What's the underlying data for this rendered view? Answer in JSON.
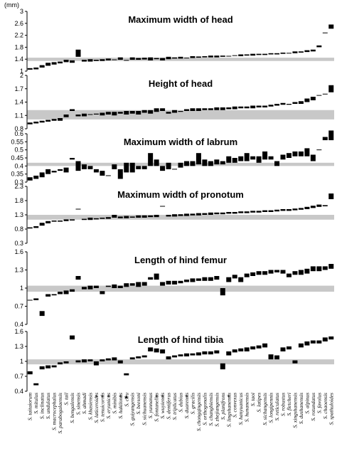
{
  "unit_label": "(mm)",
  "species": [
    "S. taitaiorum",
    "S. mitulus",
    "S. inclinatus",
    "S. undulatus",
    "S. macrocephalus",
    "S. parabogalaensis",
    "S. tail",
    "S. bengalensis",
    "S. sinensis",
    "S. ahmadi",
    "S. khasiensis",
    "S. laticeroides",
    "S. tenuicornis",
    "S. eryunicus",
    "S. minibis",
    "S. hakilonus",
    "S. ciru",
    "S. guiyangensis",
    "S. beesoni",
    "S. sichuanensis",
    "S. yunnanus",
    "S. fontanellus",
    "S. wuyiensis",
    "S. dentiferus",
    "S. triplicatus",
    "S. dubius",
    "S. duarensis",
    "S. gracilis",
    "S. chongqingensis",
    "S. orthogonalis",
    "S. changbiensis",
    "S. zhejiangensis",
    "S. planifrons",
    "S. lingshanensis",
    "S. convexus",
    "S. hanyuanicus",
    "S. hunanensis",
    "S. taoi",
    "S. latipes",
    "S. sichangensis",
    "S. longipennis",
    "S. reticulatus",
    "S. robustus",
    "S. fletcheri",
    "S. xingshanensis",
    "S. dushanensis",
    "S. alpinus",
    "S. rotundatus",
    "S. favolus",
    "S. chaoensis",
    "S. spathuloides"
  ],
  "star_species": [
    16
  ],
  "asterisk_species": [
    11,
    12,
    13,
    15,
    21,
    22,
    26,
    33
  ],
  "colors": {
    "band": "#c8c8c8",
    "bar": "#000000",
    "text": "#000000"
  },
  "chart_data": [
    {
      "type": "range-bar",
      "title": "Maximum width of head",
      "ylim": [
        1,
        3
      ],
      "yticks": [
        "1",
        "1.4",
        "1.8",
        "2.2",
        "2.6",
        "3"
      ],
      "ytick_values": [
        1,
        1.4,
        1.8,
        2.2,
        2.6,
        3
      ],
      "band": [
        1.34,
        1.45
      ],
      "ranges": [
        [
          1.05,
          1.1
        ],
        [
          1.06,
          1.12
        ],
        [
          1.12,
          1.2
        ],
        [
          1.18,
          1.28
        ],
        [
          1.22,
          1.3
        ],
        [
          1.26,
          1.32
        ],
        [
          1.3,
          1.38
        ],
        [
          1.28,
          1.36
        ],
        [
          1.48,
          1.72
        ],
        [
          1.32,
          1.38
        ],
        [
          1.32,
          1.4
        ],
        [
          1.34,
          1.38
        ],
        [
          1.34,
          1.4
        ],
        [
          1.36,
          1.42
        ],
        [
          1.38,
          1.38
        ],
        [
          1.38,
          1.46
        ],
        [
          1.36,
          1.36
        ],
        [
          1.38,
          1.46
        ],
        [
          1.38,
          1.44
        ],
        [
          1.39,
          1.45
        ],
        [
          1.36,
          1.46
        ],
        [
          1.4,
          1.44
        ],
        [
          1.36,
          1.44
        ],
        [
          1.4,
          1.48
        ],
        [
          1.42,
          1.46
        ],
        [
          1.42,
          1.48
        ],
        [
          1.44,
          1.44
        ],
        [
          1.44,
          1.5
        ],
        [
          1.45,
          1.49
        ],
        [
          1.46,
          1.5
        ],
        [
          1.46,
          1.52
        ],
        [
          1.46,
          1.52
        ],
        [
          1.48,
          1.52
        ],
        [
          1.48,
          1.5
        ],
        [
          1.5,
          1.52
        ],
        [
          1.5,
          1.56
        ],
        [
          1.52,
          1.56
        ],
        [
          1.52,
          1.58
        ],
        [
          1.54,
          1.58
        ],
        [
          1.54,
          1.58
        ],
        [
          1.56,
          1.6
        ],
        [
          1.56,
          1.6
        ],
        [
          1.58,
          1.62
        ],
        [
          1.6,
          1.6
        ],
        [
          1.6,
          1.66
        ],
        [
          1.62,
          1.66
        ],
        [
          1.64,
          1.7
        ],
        [
          1.66,
          1.72
        ],
        [
          1.8,
          1.86
        ],
        [
          2.28,
          2.28
        ],
        [
          2.42,
          2.56
        ]
      ]
    },
    {
      "type": "range-bar",
      "title": "Height of head",
      "ylim": [
        0.8,
        2
      ],
      "yticks": [
        "0.8",
        "1.1",
        "1.4",
        "1.7",
        "2"
      ],
      "ytick_values": [
        0.8,
        1.1,
        1.4,
        1.7,
        2
      ],
      "band": [
        1.01,
        1.22
      ],
      "ranges": [
        [
          0.9,
          0.94
        ],
        [
          0.92,
          0.96
        ],
        [
          0.94,
          0.98
        ],
        [
          0.96,
          1.0
        ],
        [
          0.98,
          1.02
        ],
        [
          0.98,
          1.04
        ],
        [
          1.06,
          1.12
        ],
        [
          1.2,
          1.24
        ],
        [
          1.08,
          1.12
        ],
        [
          1.08,
          1.14
        ],
        [
          1.12,
          1.12
        ],
        [
          1.12,
          1.14
        ],
        [
          1.1,
          1.16
        ],
        [
          1.12,
          1.18
        ],
        [
          1.1,
          1.18
        ],
        [
          1.14,
          1.18
        ],
        [
          1.12,
          1.2
        ],
        [
          1.14,
          1.2
        ],
        [
          1.12,
          1.2
        ],
        [
          1.16,
          1.22
        ],
        [
          1.14,
          1.22
        ],
        [
          1.18,
          1.26
        ],
        [
          1.2,
          1.26
        ],
        [
          1.14,
          1.18
        ],
        [
          1.16,
          1.22
        ],
        [
          1.18,
          1.2
        ],
        [
          1.2,
          1.24
        ],
        [
          1.2,
          1.26
        ],
        [
          1.2,
          1.26
        ],
        [
          1.22,
          1.26
        ],
        [
          1.22,
          1.26
        ],
        [
          1.22,
          1.28
        ],
        [
          1.22,
          1.28
        ],
        [
          1.24,
          1.28
        ],
        [
          1.24,
          1.3
        ],
        [
          1.26,
          1.3
        ],
        [
          1.26,
          1.3
        ],
        [
          1.26,
          1.32
        ],
        [
          1.28,
          1.32
        ],
        [
          1.28,
          1.32
        ],
        [
          1.3,
          1.34
        ],
        [
          1.32,
          1.36
        ],
        [
          1.34,
          1.38
        ],
        [
          1.34,
          1.36
        ],
        [
          1.36,
          1.4
        ],
        [
          1.36,
          1.42
        ],
        [
          1.4,
          1.48
        ],
        [
          1.44,
          1.52
        ],
        [
          1.55,
          1.55
        ],
        [
          1.58,
          1.58
        ],
        [
          1.62,
          1.78
        ]
      ]
    },
    {
      "type": "range-bar",
      "title": "Maximum width of labrum",
      "ylim": [
        0.3,
        0.6
      ],
      "yticks": [
        "0.3",
        "0.35",
        "0.4",
        "0.45",
        "0.5",
        "0.55",
        "0.6"
      ],
      "ytick_values": [
        0.3,
        0.35,
        0.4,
        0.45,
        0.5,
        0.55,
        0.6
      ],
      "band": [
        0.4,
        0.42
      ],
      "ranges": [
        [
          0.31,
          0.33
        ],
        [
          0.32,
          0.34
        ],
        [
          0.33,
          0.36
        ],
        [
          0.35,
          0.38
        ],
        [
          0.36,
          0.37
        ],
        [
          0.37,
          0.38
        ],
        [
          0.36,
          0.39
        ],
        [
          0.44,
          0.45
        ],
        [
          0.37,
          0.43
        ],
        [
          0.38,
          0.41
        ],
        [
          0.38,
          0.4
        ],
        [
          0.36,
          0.38
        ],
        [
          0.34,
          0.37
        ],
        [
          0.34,
          0.34
        ],
        [
          0.38,
          0.41
        ],
        [
          0.32,
          0.38
        ],
        [
          0.36,
          0.42
        ],
        [
          0.36,
          0.42
        ],
        [
          0.38,
          0.4
        ],
        [
          0.38,
          0.4
        ],
        [
          0.4,
          0.48
        ],
        [
          0.4,
          0.44
        ],
        [
          0.37,
          0.4
        ],
        [
          0.38,
          0.42
        ],
        [
          0.38,
          0.38
        ],
        [
          0.39,
          0.42
        ],
        [
          0.4,
          0.43
        ],
        [
          0.4,
          0.43
        ],
        [
          0.41,
          0.48
        ],
        [
          0.4,
          0.44
        ],
        [
          0.4,
          0.43
        ],
        [
          0.41,
          0.44
        ],
        [
          0.41,
          0.43
        ],
        [
          0.42,
          0.46
        ],
        [
          0.42,
          0.45
        ],
        [
          0.43,
          0.46
        ],
        [
          0.43,
          0.48
        ],
        [
          0.44,
          0.46
        ],
        [
          0.42,
          0.46
        ],
        [
          0.44,
          0.49
        ],
        [
          0.44,
          0.46
        ],
        [
          0.4,
          0.43
        ],
        [
          0.44,
          0.47
        ],
        [
          0.45,
          0.48
        ],
        [
          0.46,
          0.49
        ],
        [
          0.46,
          0.49
        ],
        [
          0.46,
          0.51
        ],
        [
          0.43,
          0.47
        ],
        [
          0.5,
          0.5
        ],
        [
          0.56,
          0.58
        ],
        [
          0.56,
          0.62
        ]
      ]
    },
    {
      "type": "range-bar",
      "title": "Maximum width of pronotum",
      "ylim": [
        0.3,
        2.3
      ],
      "yticks": [
        "0.3",
        "0.8",
        "1.3",
        "1.8",
        "2.3"
      ],
      "ytick_values": [
        0.3,
        0.8,
        1.3,
        1.8,
        2.3
      ],
      "band": [
        1.13,
        1.3
      ],
      "ranges": [
        [
          0.82,
          0.86
        ],
        [
          0.84,
          0.9
        ],
        [
          0.92,
          1.02
        ],
        [
          1.0,
          1.08
        ],
        [
          1.06,
          1.1
        ],
        [
          1.06,
          1.1
        ],
        [
          1.08,
          1.14
        ],
        [
          1.1,
          1.14
        ],
        [
          1.5,
          1.5
        ],
        [
          1.12,
          1.16
        ],
        [
          1.12,
          1.2
        ],
        [
          1.14,
          1.18
        ],
        [
          1.16,
          1.2
        ],
        [
          1.16,
          1.22
        ],
        [
          1.2,
          1.3
        ],
        [
          1.18,
          1.24
        ],
        [
          1.18,
          1.26
        ],
        [
          1.2,
          1.24
        ],
        [
          1.2,
          1.28
        ],
        [
          1.2,
          1.28
        ],
        [
          1.22,
          1.28
        ],
        [
          1.22,
          1.3
        ],
        [
          1.6,
          1.6
        ],
        [
          1.24,
          1.3
        ],
        [
          1.24,
          1.32
        ],
        [
          1.26,
          1.32
        ],
        [
          1.26,
          1.34
        ],
        [
          1.28,
          1.34
        ],
        [
          1.28,
          1.36
        ],
        [
          1.3,
          1.36
        ],
        [
          1.3,
          1.38
        ],
        [
          1.32,
          1.38
        ],
        [
          1.32,
          1.38
        ],
        [
          1.34,
          1.4
        ],
        [
          1.34,
          1.4
        ],
        [
          1.36,
          1.42
        ],
        [
          1.36,
          1.42
        ],
        [
          1.38,
          1.44
        ],
        [
          1.38,
          1.44
        ],
        [
          1.4,
          1.46
        ],
        [
          1.4,
          1.46
        ],
        [
          1.42,
          1.48
        ],
        [
          1.44,
          1.5
        ],
        [
          1.44,
          1.5
        ],
        [
          1.46,
          1.52
        ],
        [
          1.48,
          1.54
        ],
        [
          1.5,
          1.58
        ],
        [
          1.54,
          1.62
        ],
        [
          1.58,
          1.66
        ],
        [
          1.6,
          1.64
        ],
        [
          1.85,
          2.05
        ]
      ]
    },
    {
      "type": "range-bar",
      "title": "Length of hind femur",
      "ylim": [
        0.4,
        1.6
      ],
      "yticks": [
        "0.4",
        "0.7",
        "1",
        "1.3",
        "1.6"
      ],
      "ytick_values": [
        0.4,
        0.7,
        1,
        1.3,
        1.6
      ],
      "band": [
        0.94,
        1.04
      ],
      "ranges": [
        [
          0.8,
          0.8
        ],
        [
          0.8,
          0.83
        ],
        [
          0.54,
          0.62
        ],
        [
          0.86,
          0.9
        ],
        [
          0.88,
          0.9
        ],
        [
          0.9,
          0.94
        ],
        [
          0.9,
          0.96
        ],
        [
          0.94,
          0.98
        ],
        [
          1.14,
          1.2
        ],
        [
          0.98,
          1.02
        ],
        [
          0.98,
          1.04
        ],
        [
          1.0,
          1.04
        ],
        [
          0.9,
          0.95
        ],
        [
          1.02,
          1.04
        ],
        [
          1.0,
          1.06
        ],
        [
          1.0,
          1.04
        ],
        [
          1.02,
          1.08
        ],
        [
          1.04,
          1.08
        ],
        [
          1.02,
          1.1
        ],
        [
          1.04,
          1.1
        ],
        [
          1.14,
          1.18
        ],
        [
          1.14,
          1.24
        ],
        [
          1.04,
          1.1
        ],
        [
          1.06,
          1.12
        ],
        [
          1.06,
          1.12
        ],
        [
          1.08,
          1.12
        ],
        [
          1.1,
          1.14
        ],
        [
          1.1,
          1.16
        ],
        [
          1.12,
          1.16
        ],
        [
          1.12,
          1.18
        ],
        [
          1.12,
          1.18
        ],
        [
          1.14,
          1.2
        ],
        [
          0.88,
          1.0
        ],
        [
          1.1,
          1.18
        ],
        [
          1.16,
          1.22
        ],
        [
          1.1,
          1.18
        ],
        [
          1.18,
          1.24
        ],
        [
          1.2,
          1.26
        ],
        [
          1.22,
          1.28
        ],
        [
          1.22,
          1.28
        ],
        [
          1.24,
          1.3
        ],
        [
          1.26,
          1.3
        ],
        [
          1.24,
          1.3
        ],
        [
          1.18,
          1.24
        ],
        [
          1.22,
          1.28
        ],
        [
          1.22,
          1.3
        ],
        [
          1.24,
          1.32
        ],
        [
          1.28,
          1.36
        ],
        [
          1.28,
          1.36
        ],
        [
          1.3,
          1.36
        ],
        [
          1.32,
          1.4
        ]
      ]
    },
    {
      "type": "range-bar",
      "title": "Length of hind tibia",
      "ylim": [
        0.4,
        1.6
      ],
      "yticks": [
        "0.4",
        "0.7",
        "1",
        "1.3",
        "1.6"
      ],
      "ytick_values": [
        0.4,
        0.7,
        1,
        1.3,
        1.6
      ],
      "band": [
        0.94,
        1.04
      ],
      "ranges": [
        [
          0.74,
          0.8
        ],
        [
          0.52,
          0.56
        ],
        [
          0.84,
          0.9
        ],
        [
          0.86,
          0.92
        ],
        [
          0.88,
          0.92
        ],
        [
          0.94,
          0.98
        ],
        [
          0.96,
          1.0
        ],
        [
          1.44,
          1.52
        ],
        [
          0.98,
          1.02
        ],
        [
          0.98,
          1.04
        ],
        [
          1.0,
          1.04
        ],
        [
          0.92,
          1.0
        ],
        [
          1.0,
          1.04
        ],
        [
          1.02,
          1.06
        ],
        [
          1.02,
          1.08
        ],
        [
          0.96,
          1.02
        ],
        [
          0.72,
          0.76
        ],
        [
          1.04,
          1.08
        ],
        [
          1.06,
          1.1
        ],
        [
          1.08,
          1.12
        ],
        [
          1.2,
          1.28
        ],
        [
          1.18,
          1.26
        ],
        [
          1.16,
          1.24
        ],
        [
          1.04,
          1.1
        ],
        [
          1.08,
          1.12
        ],
        [
          1.1,
          1.14
        ],
        [
          1.1,
          1.16
        ],
        [
          1.12,
          1.16
        ],
        [
          1.12,
          1.18
        ],
        [
          1.14,
          1.2
        ],
        [
          1.14,
          1.2
        ],
        [
          1.16,
          1.22
        ],
        [
          0.84,
          0.96
        ],
        [
          1.12,
          1.2
        ],
        [
          1.18,
          1.24
        ],
        [
          1.2,
          1.26
        ],
        [
          1.2,
          1.28
        ],
        [
          1.24,
          1.3
        ],
        [
          1.26,
          1.32
        ],
        [
          1.28,
          1.36
        ],
        [
          1.04,
          1.14
        ],
        [
          1.04,
          1.12
        ],
        [
          1.2,
          1.28
        ],
        [
          1.24,
          1.3
        ],
        [
          0.96,
          1.02
        ],
        [
          1.28,
          1.36
        ],
        [
          1.32,
          1.4
        ],
        [
          1.36,
          1.42
        ],
        [
          1.36,
          1.42
        ],
        [
          1.4,
          1.48
        ],
        [
          1.44,
          1.5
        ]
      ]
    }
  ]
}
